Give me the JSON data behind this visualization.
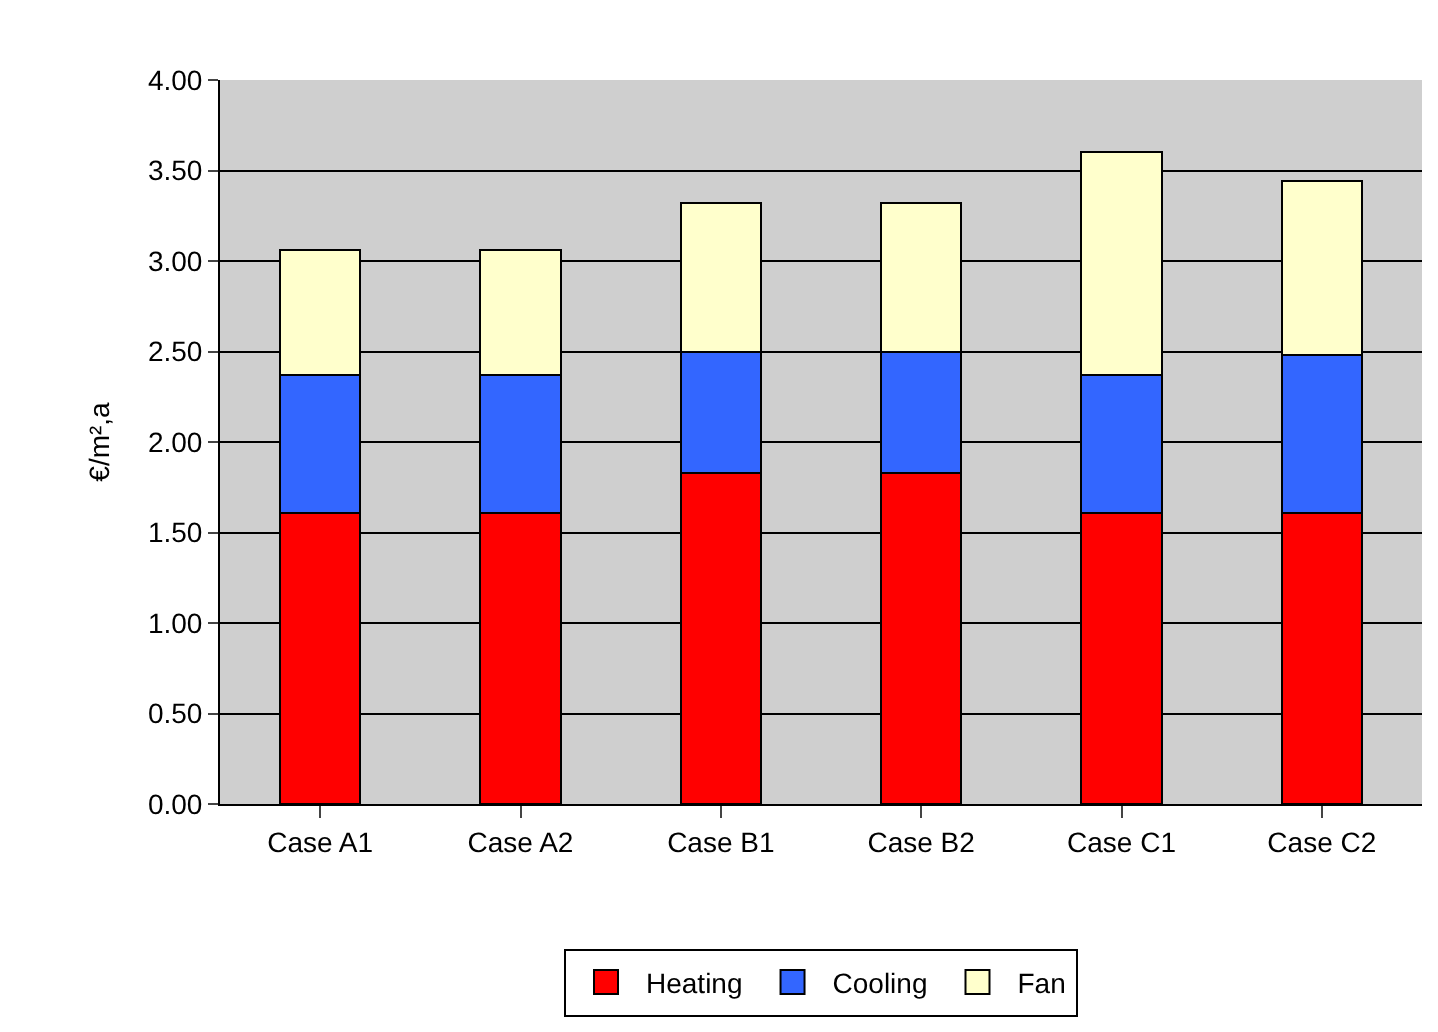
{
  "chart_data": {
    "type": "bar",
    "stacked": true,
    "ylabel": "€/m²,a",
    "categories": [
      "Case A1",
      "Case A2",
      "Case B1",
      "Case B2",
      "Case C1",
      "Case C2"
    ],
    "series": [
      {
        "name": "Heating",
        "color": "#ff0000",
        "values": [
          1.61,
          1.61,
          1.83,
          1.83,
          1.61,
          1.61
        ]
      },
      {
        "name": "Cooling",
        "color": "#3366ff",
        "values": [
          0.76,
          0.76,
          0.67,
          0.67,
          0.76,
          0.87
        ]
      },
      {
        "name": "Fan",
        "color": "#ffffcc",
        "values": [
          0.69,
          0.69,
          0.82,
          0.82,
          1.23,
          0.96
        ]
      }
    ],
    "ylim": [
      0,
      4
    ],
    "yticks": [
      {
        "value": 0,
        "label": "0.00"
      },
      {
        "value": 0.5,
        "label": "0.50"
      },
      {
        "value": 1,
        "label": "1.00"
      },
      {
        "value": 1.5,
        "label": "1.50"
      },
      {
        "value": 2,
        "label": "2.00"
      },
      {
        "value": 2.5,
        "label": "2.50"
      },
      {
        "value": 3,
        "label": "3.00"
      },
      {
        "value": 3.5,
        "label": "3.50"
      },
      {
        "value": 4,
        "label": "4.00"
      }
    ],
    "grid": "y",
    "legend": "bottom"
  }
}
